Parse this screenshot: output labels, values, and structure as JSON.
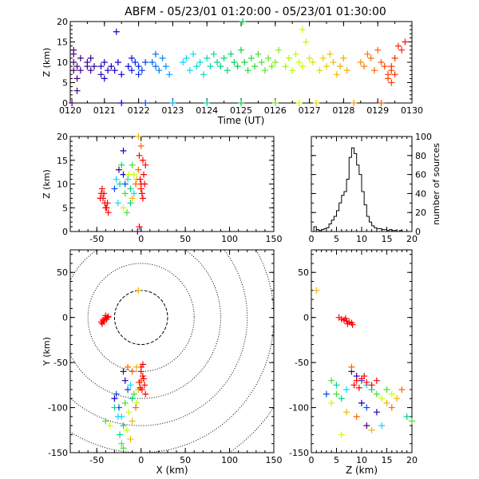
{
  "title": "ABFM - 05/23/01 01:20:00 - 05/23/01 01:30:00",
  "chart_data": [
    {
      "type": "scatter",
      "panel": "time-height",
      "xlabel": "Time (UT)",
      "ylabel": "Z (km)",
      "xlim": [
        0,
        10
      ],
      "ylim": [
        0,
        20
      ],
      "x_ticks": [
        "0120",
        "0121",
        "0122",
        "0123",
        "0124",
        "0125",
        "0126",
        "0127",
        "0128",
        "0129",
        "0130"
      ],
      "y_ticks": [
        "0",
        "5",
        "10",
        "15",
        "20"
      ],
      "marker": "plus",
      "color_scale": "time-rainbow",
      "points": [
        [
          0.1,
          8
        ],
        [
          0.1,
          10
        ],
        [
          0.2,
          6
        ],
        [
          0.2,
          9
        ],
        [
          0.3,
          11
        ],
        [
          0.1,
          13
        ],
        [
          0.2,
          3
        ],
        [
          0.05,
          0
        ],
        [
          0.1,
          12
        ],
        [
          0.3,
          8
        ],
        [
          0.5,
          9
        ],
        [
          0.5,
          10
        ],
        [
          0.6,
          8
        ],
        [
          0.6,
          11
        ],
        [
          0.7,
          9
        ],
        [
          0.9,
          7
        ],
        [
          0.9,
          9
        ],
        [
          1.0,
          10
        ],
        [
          1.0,
          6
        ],
        [
          1.1,
          8
        ],
        [
          1.2,
          9
        ],
        [
          1.35,
          17.5
        ],
        [
          1.3,
          8
        ],
        [
          1.4,
          10
        ],
        [
          1.5,
          7
        ],
        [
          1.5,
          0
        ],
        [
          1.7,
          9
        ],
        [
          1.8,
          8
        ],
        [
          1.8,
          11
        ],
        [
          1.9,
          10
        ],
        [
          2.0,
          7
        ],
        [
          2.0,
          9
        ],
        [
          2.1,
          8
        ],
        [
          2.2,
          10
        ],
        [
          2.2,
          0
        ],
        [
          2.4,
          10
        ],
        [
          2.5,
          9
        ],
        [
          2.5,
          12
        ],
        [
          2.6,
          8
        ],
        [
          2.7,
          11
        ],
        [
          2.8,
          9
        ],
        [
          3.0,
          0
        ],
        [
          2.9,
          7
        ],
        [
          3.3,
          10
        ],
        [
          3.4,
          11
        ],
        [
          3.5,
          8
        ],
        [
          3.6,
          12
        ],
        [
          3.7,
          9
        ],
        [
          3.8,
          10
        ],
        [
          3.9,
          7
        ],
        [
          4.0,
          11
        ],
        [
          4.1,
          9
        ],
        [
          4.2,
          12
        ],
        [
          4.3,
          10
        ],
        [
          4.0,
          0
        ],
        [
          4.4,
          9
        ],
        [
          4.5,
          11
        ],
        [
          4.6,
          8
        ],
        [
          4.7,
          12
        ],
        [
          4.8,
          10
        ],
        [
          4.9,
          9
        ],
        [
          5.0,
          13
        ],
        [
          5.1,
          10
        ],
        [
          5.2,
          8
        ],
        [
          5.3,
          11
        ],
        [
          5.0,
          0
        ],
        [
          5.05,
          20
        ],
        [
          5.4,
          9
        ],
        [
          5.5,
          12
        ],
        [
          5.6,
          10
        ],
        [
          5.7,
          8
        ],
        [
          5.8,
          11
        ],
        [
          5.9,
          9
        ],
        [
          6.0,
          10
        ],
        [
          6.1,
          13
        ],
        [
          6.0,
          0
        ],
        [
          6.3,
          9
        ],
        [
          6.4,
          11
        ],
        [
          6.5,
          8
        ],
        [
          6.6,
          12
        ],
        [
          6.7,
          10
        ],
        [
          6.8,
          9
        ],
        [
          6.9,
          15
        ],
        [
          6.8,
          18
        ],
        [
          7.0,
          11
        ],
        [
          7.1,
          10
        ],
        [
          7.2,
          0
        ],
        [
          6.7,
          0
        ],
        [
          7.3,
          8
        ],
        [
          7.4,
          11
        ],
        [
          7.5,
          9
        ],
        [
          7.6,
          12
        ],
        [
          7.7,
          10
        ],
        [
          7.8,
          7
        ],
        [
          7.9,
          9
        ],
        [
          8.0,
          11
        ],
        [
          8.1,
          8
        ],
        [
          8.3,
          0
        ],
        [
          8.5,
          10
        ],
        [
          8.6,
          9
        ],
        [
          8.7,
          12
        ],
        [
          8.8,
          11
        ],
        [
          8.9,
          8
        ],
        [
          9.0,
          13
        ],
        [
          9.1,
          10
        ],
        [
          9.2,
          9
        ],
        [
          9.3,
          7
        ],
        [
          9.4,
          8
        ],
        [
          9.5,
          11
        ],
        [
          9.6,
          14
        ],
        [
          9.7,
          13
        ],
        [
          9.8,
          15
        ],
        [
          9.1,
          0
        ],
        [
          9.3,
          6
        ],
        [
          9.4,
          5
        ],
        [
          9.5,
          7
        ],
        [
          9.4,
          9
        ]
      ]
    },
    {
      "type": "scatter",
      "panel": "x-height",
      "xlabel": "",
      "ylabel": "Z (km)",
      "xlim": [
        -80,
        150
      ],
      "ylim": [
        0,
        20
      ],
      "x_ticks": [
        "-50",
        "0",
        "50",
        "100",
        "150"
      ],
      "y_ticks": [
        "0",
        "5",
        "10",
        "15",
        "20"
      ],
      "marker": "plus",
      "color_scale": "time-rainbow",
      "points": [
        [
          -45,
          8,
          9
        ],
        [
          -43,
          7,
          9
        ],
        [
          -41,
          6,
          9
        ],
        [
          -40,
          5,
          9
        ],
        [
          -38,
          6,
          9
        ],
        [
          -44,
          9,
          9
        ],
        [
          -42,
          8,
          9
        ],
        [
          -39,
          5,
          9
        ],
        [
          -37,
          4,
          9
        ],
        [
          -46,
          7,
          9
        ],
        [
          -25,
          13,
          0
        ],
        [
          -20,
          12,
          1
        ],
        [
          -18,
          10,
          2
        ],
        [
          -15,
          11,
          3
        ],
        [
          -12,
          9,
          4
        ],
        [
          -10,
          14,
          5
        ],
        [
          -8,
          12,
          6
        ],
        [
          -5,
          11,
          7
        ],
        [
          -3,
          13,
          8
        ],
        [
          0,
          10,
          9
        ],
        [
          2,
          15,
          9
        ],
        [
          3,
          12,
          9
        ],
        [
          4,
          10,
          9
        ],
        [
          1,
          8,
          9
        ],
        [
          5,
          14,
          9
        ],
        [
          -2,
          16,
          9
        ],
        [
          0,
          9,
          9
        ],
        [
          2,
          7,
          9
        ],
        [
          -1,
          11,
          9
        ],
        [
          -30,
          9,
          2
        ],
        [
          -28,
          11,
          3
        ],
        [
          -22,
          14,
          4
        ],
        [
          -18,
          8,
          5
        ],
        [
          -14,
          12,
          6
        ],
        [
          -10,
          7,
          7
        ],
        [
          -6,
          10,
          8
        ],
        [
          -26,
          6,
          3
        ],
        [
          -24,
          10,
          4
        ],
        [
          -20,
          17,
          1
        ],
        [
          -3,
          20,
          7
        ],
        [
          0,
          18,
          8
        ],
        [
          -4,
          0,
          0
        ],
        [
          -2,
          1,
          9
        ],
        [
          -20,
          5,
          6
        ],
        [
          -16,
          4,
          5
        ],
        [
          -12,
          6,
          4
        ],
        [
          -8,
          8,
          3
        ]
      ]
    },
    {
      "type": "histogram",
      "panel": "height-histogram",
      "xlabel": "",
      "ylabel": "number of sources",
      "xlim": [
        0,
        20
      ],
      "ylim": [
        0,
        100
      ],
      "x_ticks": [
        "0",
        "5",
        "10",
        "15",
        "20"
      ],
      "y_ticks": [
        "0",
        "20",
        "40",
        "60",
        "80",
        "100"
      ],
      "bin_width": 0.5,
      "counts": [
        0,
        5,
        2,
        1,
        2,
        3,
        4,
        8,
        12,
        16,
        22,
        30,
        38,
        42,
        55,
        78,
        88,
        82,
        70,
        60,
        42,
        28,
        16,
        10,
        6,
        4,
        3,
        3,
        2,
        2,
        1,
        2,
        1,
        1,
        0,
        1,
        0,
        0,
        0,
        0
      ]
    },
    {
      "type": "scatter",
      "panel": "plan-view",
      "xlabel": "X (km)",
      "ylabel": "Y (km)",
      "xlim": [
        -80,
        150
      ],
      "ylim": [
        -150,
        75
      ],
      "x_ticks": [
        "-50",
        "0",
        "50",
        "100",
        "150"
      ],
      "y_ticks": [
        "-150",
        "-100",
        "-50",
        "0",
        "50"
      ],
      "range_rings_km": [
        30,
        60,
        90,
        120,
        150,
        180
      ],
      "marker": "plus",
      "color_scale": "time-rainbow",
      "points": [
        [
          -3,
          30,
          7
        ],
        [
          -45,
          -5,
          9
        ],
        [
          -43,
          -3,
          9
        ],
        [
          -41,
          -1,
          9
        ],
        [
          -40,
          2,
          9
        ],
        [
          -38,
          0,
          9
        ],
        [
          -44,
          -7,
          9
        ],
        [
          -42,
          -5,
          9
        ],
        [
          -39,
          -2,
          9
        ],
        [
          -37,
          1,
          9
        ],
        [
          -20,
          -60,
          0
        ],
        [
          -18,
          -70,
          1
        ],
        [
          -15,
          -80,
          2
        ],
        [
          -12,
          -75,
          3
        ],
        [
          -10,
          -90,
          4
        ],
        [
          -8,
          -85,
          5
        ],
        [
          -5,
          -95,
          6
        ],
        [
          -3,
          -80,
          7
        ],
        [
          0,
          -70,
          8
        ],
        [
          2,
          -65,
          9
        ],
        [
          -25,
          -100,
          2
        ],
        [
          -22,
          -110,
          3
        ],
        [
          -20,
          -120,
          4
        ],
        [
          -18,
          -95,
          5
        ],
        [
          -14,
          -105,
          6
        ],
        [
          -10,
          -115,
          7
        ],
        [
          -6,
          -100,
          8
        ],
        [
          -30,
          -90,
          1
        ],
        [
          -28,
          -85,
          2
        ],
        [
          -26,
          -110,
          3
        ],
        [
          -24,
          -130,
          4
        ],
        [
          -22,
          -140,
          5
        ],
        [
          -16,
          -125,
          6
        ],
        [
          -12,
          -135,
          7
        ],
        [
          0,
          -60,
          9
        ],
        [
          3,
          -68,
          9
        ],
        [
          4,
          -75,
          9
        ],
        [
          1,
          -80,
          9
        ],
        [
          5,
          -85,
          9
        ],
        [
          -2,
          -72,
          9
        ],
        [
          0,
          -55,
          9
        ],
        [
          -1,
          -78,
          9
        ],
        [
          -40,
          -115,
          5
        ],
        [
          -35,
          -120,
          6
        ],
        [
          -30,
          -100,
          4
        ],
        [
          -15,
          -55,
          8
        ],
        [
          -10,
          -60,
          8
        ],
        [
          -5,
          -55,
          7
        ],
        [
          -20,
          -145,
          5
        ],
        [
          2,
          -52,
          9
        ]
      ]
    },
    {
      "type": "scatter",
      "panel": "height-y",
      "xlabel": "Z (km)",
      "ylabel": "",
      "xlim": [
        0,
        20
      ],
      "ylim": [
        -150,
        75
      ],
      "x_ticks": [
        "0",
        "5",
        "10",
        "15",
        "20"
      ],
      "y_ticks": [
        "-150",
        "-100",
        "-50",
        "0",
        "50"
      ],
      "marker": "plus",
      "color_scale": "time-rainbow",
      "points": [
        [
          1,
          30,
          7
        ],
        [
          6,
          -2,
          9
        ],
        [
          6.5,
          -3,
          9
        ],
        [
          7,
          -4,
          9
        ],
        [
          7.5,
          -5,
          9
        ],
        [
          8,
          -6,
          9
        ],
        [
          5.5,
          0,
          9
        ],
        [
          6.8,
          -1,
          9
        ],
        [
          7.2,
          -7,
          9
        ],
        [
          8.2,
          -8,
          9
        ],
        [
          8,
          -60,
          0
        ],
        [
          9,
          -65,
          1
        ],
        [
          10,
          -70,
          2
        ],
        [
          11,
          -75,
          3
        ],
        [
          12,
          -80,
          4
        ],
        [
          13,
          -85,
          5
        ],
        [
          14,
          -90,
          6
        ],
        [
          15,
          -95,
          7
        ],
        [
          16,
          -100,
          8
        ],
        [
          9,
          -70,
          9
        ],
        [
          10,
          -68,
          9
        ],
        [
          11,
          -72,
          9
        ],
        [
          8.5,
          -75,
          9
        ],
        [
          9.5,
          -78,
          9
        ],
        [
          10.5,
          -65,
          9
        ],
        [
          12,
          -75,
          9
        ],
        [
          13,
          -70,
          9
        ],
        [
          7,
          -80,
          3
        ],
        [
          6,
          -90,
          4
        ],
        [
          5,
          -85,
          5
        ],
        [
          4,
          -95,
          6
        ],
        [
          7,
          -105,
          7
        ],
        [
          9,
          -110,
          8
        ],
        [
          11,
          -100,
          2
        ],
        [
          13,
          -105,
          1
        ],
        [
          15,
          -80,
          5
        ],
        [
          16,
          -85,
          6
        ],
        [
          17,
          -90,
          7
        ],
        [
          18,
          -80,
          8
        ],
        [
          19,
          -110,
          4
        ],
        [
          20,
          -115,
          5
        ],
        [
          8,
          -55,
          8
        ],
        [
          6,
          -130,
          6
        ],
        [
          12,
          -125,
          7
        ],
        [
          14,
          -120,
          3
        ],
        [
          5,
          -75,
          4
        ],
        [
          4,
          -70,
          5
        ],
        [
          3,
          -85,
          2
        ],
        [
          10,
          -95,
          1
        ],
        [
          11,
          -120,
          0
        ]
      ]
    }
  ]
}
